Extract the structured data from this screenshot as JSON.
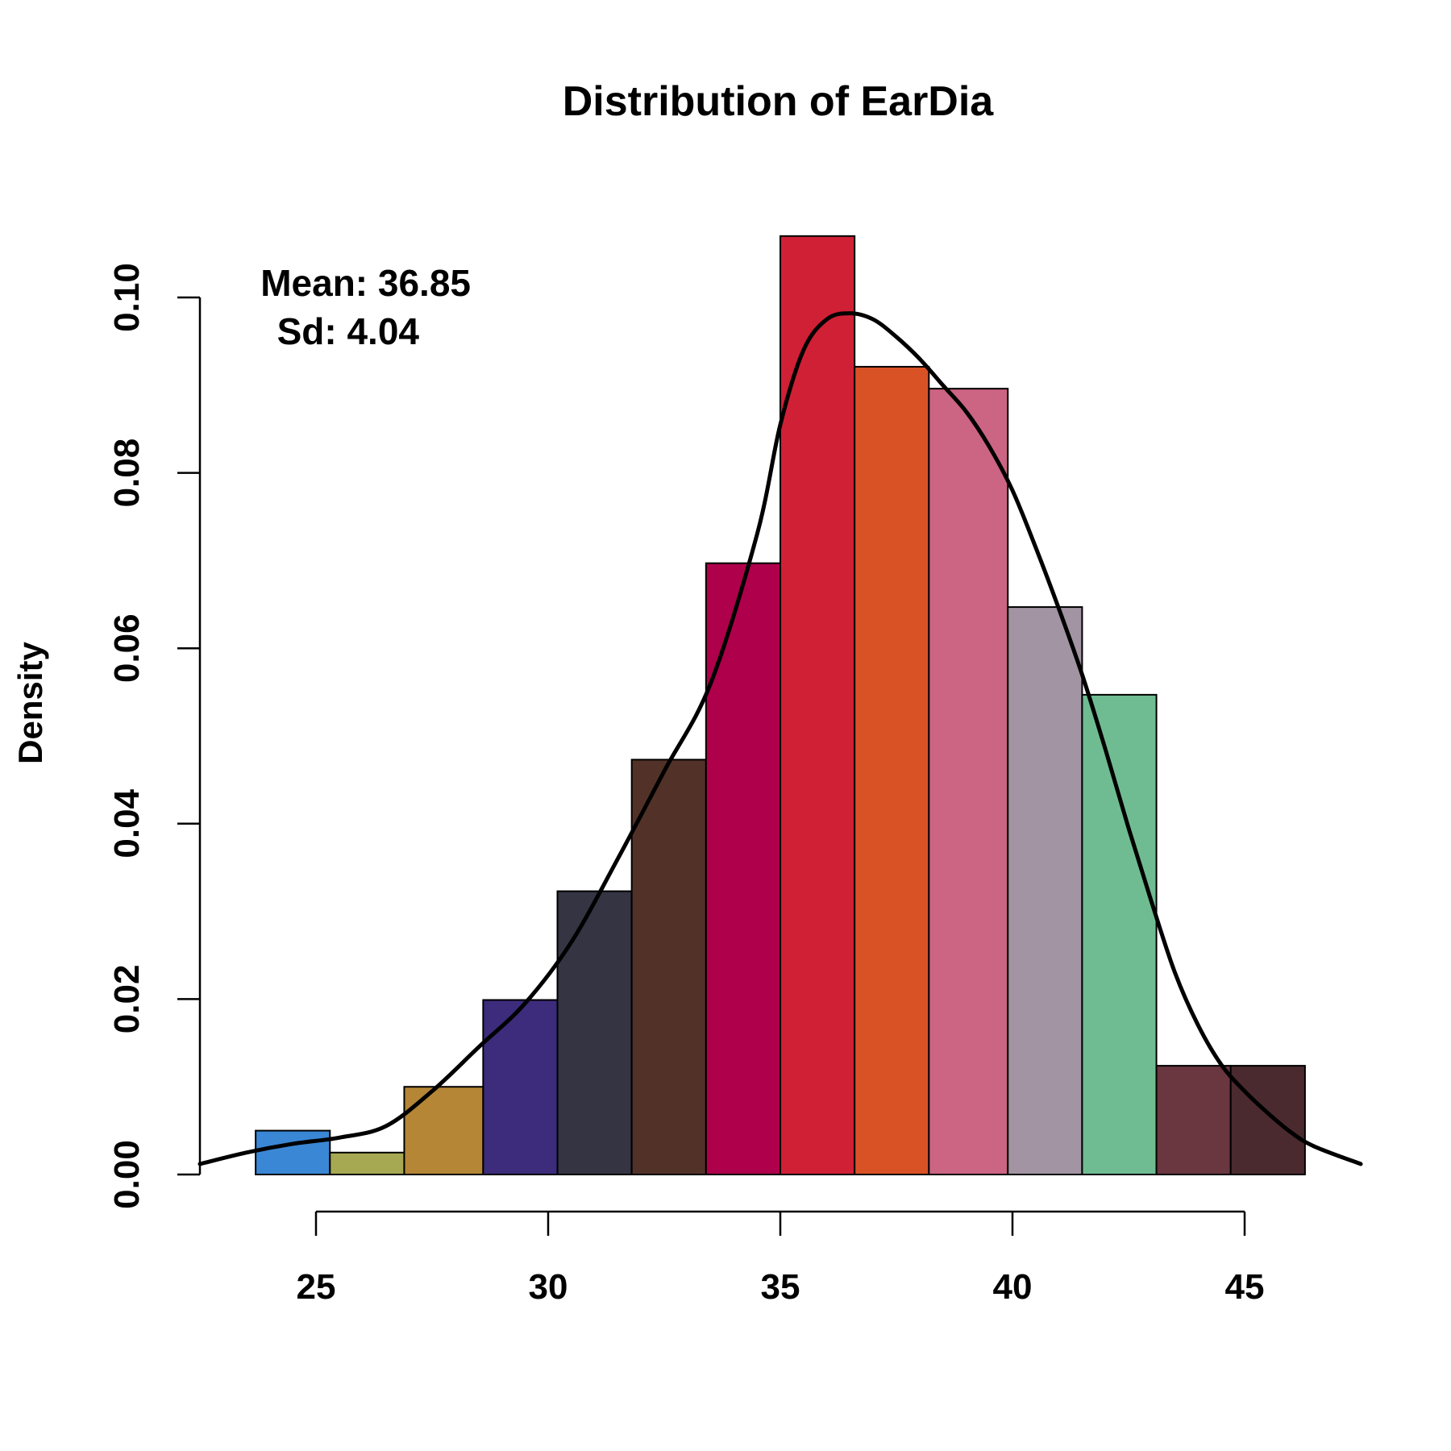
{
  "chart_data": {
    "type": "bar",
    "subtype": "histogram",
    "title": "Distribution of EarDia",
    "ylabel": "Density",
    "xlabel": "",
    "xlim": [
      22.5,
      47.5
    ],
    "ylim": [
      0,
      0.107
    ],
    "x_ticks": [
      25,
      30,
      35,
      40,
      45
    ],
    "y_ticks": [
      0.0,
      0.02,
      0.04,
      0.06,
      0.08,
      0.1
    ],
    "y_tick_labels": [
      "0.00",
      "0.02",
      "0.04",
      "0.06",
      "0.08",
      "0.10"
    ],
    "x_tick_labels": [
      "25",
      "30",
      "35",
      "40",
      "45"
    ],
    "bins": [
      {
        "x0": 23.7,
        "x1": 25.3,
        "density": 0.005,
        "color": "#3a87d5"
      },
      {
        "x0": 25.3,
        "x1": 26.9,
        "density": 0.0025,
        "color": "#a7a852"
      },
      {
        "x0": 26.9,
        "x1": 28.6,
        "density": 0.01,
        "color": "#b48636"
      },
      {
        "x0": 28.6,
        "x1": 30.2,
        "density": 0.0199,
        "color": "#3d2b7b"
      },
      {
        "x0": 30.2,
        "x1": 31.8,
        "density": 0.0323,
        "color": "#343443"
      },
      {
        "x0": 31.8,
        "x1": 33.4,
        "density": 0.0473,
        "color": "#523228"
      },
      {
        "x0": 33.4,
        "x1": 35.0,
        "density": 0.0697,
        "color": "#af004b"
      },
      {
        "x0": 35.0,
        "x1": 36.6,
        "density": 0.107,
        "color": "#d02035"
      },
      {
        "x0": 36.6,
        "x1": 38.2,
        "density": 0.0921,
        "color": "#d95226"
      },
      {
        "x0": 38.2,
        "x1": 39.9,
        "density": 0.0896,
        "color": "#cc6483"
      },
      {
        "x0": 39.9,
        "x1": 41.5,
        "density": 0.0647,
        "color": "#a394a3"
      },
      {
        "x0": 41.5,
        "x1": 43.1,
        "density": 0.0547,
        "color": "#70bc92"
      },
      {
        "x0": 43.1,
        "x1": 44.7,
        "density": 0.0124,
        "color": "#6a3640"
      },
      {
        "x0": 44.7,
        "x1": 46.3,
        "density": 0.0124,
        "color": "#4a2a2e"
      }
    ],
    "density_curve": {
      "x": [
        22.5,
        23.5,
        24.5,
        25.5,
        26.5,
        27.5,
        28.5,
        29.5,
        30.5,
        31.5,
        32.5,
        33.5,
        34.5,
        35.0,
        35.5,
        36.0,
        36.5,
        37.0,
        37.5,
        38.0,
        38.5,
        39.0,
        39.5,
        40.0,
        40.5,
        41.0,
        41.5,
        42.0,
        42.5,
        43.0,
        43.5,
        44.0,
        44.5,
        45.0,
        45.5,
        46.0,
        46.5,
        47.5
      ],
      "y": [
        0.0012,
        0.0025,
        0.0035,
        0.0042,
        0.0055,
        0.0095,
        0.0145,
        0.0195,
        0.0265,
        0.036,
        0.046,
        0.056,
        0.073,
        0.0855,
        0.094,
        0.0975,
        0.0982,
        0.0975,
        0.0955,
        0.093,
        0.09,
        0.087,
        0.083,
        0.078,
        0.0715,
        0.0645,
        0.057,
        0.0485,
        0.0395,
        0.031,
        0.023,
        0.017,
        0.0125,
        0.0095,
        0.007,
        0.0048,
        0.0032,
        0.0012
      ],
      "color": "#000000"
    },
    "annotations": {
      "mean": "Mean: 36.85",
      "sd": "Sd: 4.04"
    },
    "grid": false,
    "legend": "none"
  }
}
